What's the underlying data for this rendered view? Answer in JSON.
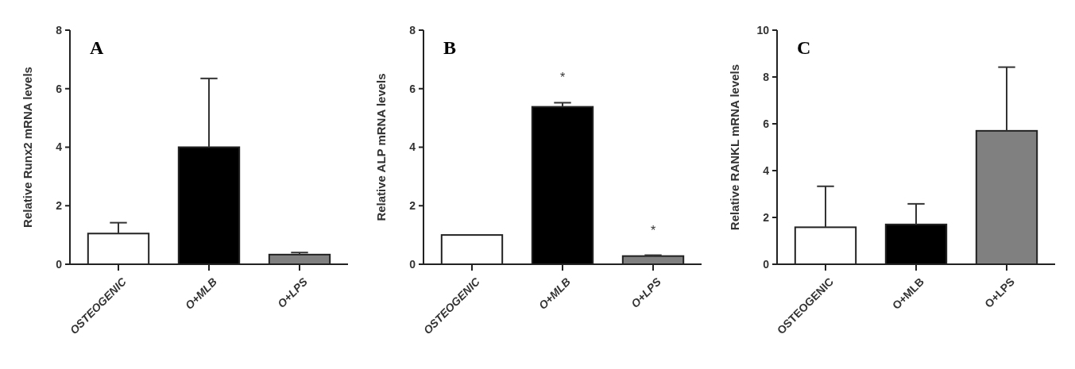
{
  "chart_data": [
    {
      "type": "bar",
      "title": "A",
      "ylabel": "Relative Runx2 mRNA levels",
      "categories": [
        "OSTEOGENIC",
        "O+MLB",
        "O+LPS"
      ],
      "values": [
        1.05,
        4.0,
        0.33
      ],
      "colors": [
        "#ffffff",
        "#000000",
        "#808080"
      ],
      "errors": [
        [
          1.05,
          1.42
        ],
        [
          4.0,
          6.35
        ],
        [
          0.33,
          0.4
        ]
      ],
      "ylim": [
        0,
        8
      ],
      "yticks": [
        0,
        2,
        4,
        6,
        8
      ]
    },
    {
      "type": "bar",
      "title": "B",
      "ylabel": "Relative ALP mRNA levels",
      "categories": [
        "OSTEOGENIC",
        "O+MLB",
        "O+LPS"
      ],
      "values": [
        1.0,
        5.38,
        0.28
      ],
      "colors": [
        "#ffffff",
        "#000000",
        "#808080"
      ],
      "errors": [
        null,
        [
          5.38,
          5.52
        ],
        [
          0.28,
          0.31
        ]
      ],
      "ylim": [
        0,
        8
      ],
      "yticks": [
        0,
        2,
        4,
        6,
        8
      ],
      "annotations": [
        {
          "text": "*",
          "x": "O+MLB",
          "y": 5.52
        },
        {
          "text": "*",
          "x": "O+LPS",
          "y": 0.31
        }
      ]
    },
    {
      "type": "bar",
      "title": "C",
      "ylabel": "Relative RANKL mRNA levels",
      "categories": [
        "OSTEOGENIC",
        "O+MLB",
        "O+LPS"
      ],
      "values": [
        1.58,
        1.7,
        5.7
      ],
      "colors": [
        "#ffffff",
        "#000000",
        "#808080"
      ],
      "errors": [
        [
          1.58,
          3.33
        ],
        [
          1.7,
          2.58
        ],
        [
          5.7,
          8.42
        ]
      ],
      "ylim": [
        0,
        10
      ],
      "yticks": [
        0,
        2,
        4,
        6,
        8,
        10
      ]
    }
  ]
}
